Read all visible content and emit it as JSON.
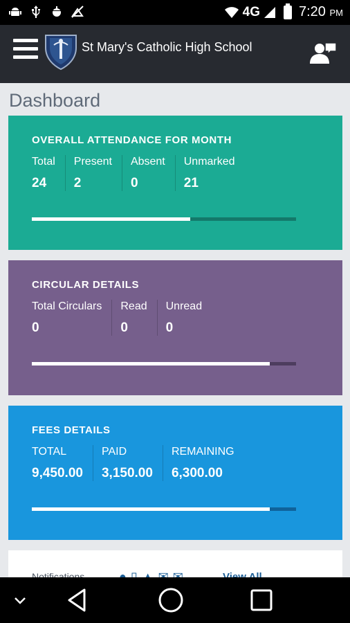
{
  "status_bar": {
    "network": "4G",
    "time": "7:20",
    "ampm": "PM",
    "left_icons": [
      "android-icon",
      "usb-icon",
      "android-debug-icon",
      "no-hanger-icon"
    ]
  },
  "app_bar": {
    "title": "St Mary's Catholic High School"
  },
  "page": {
    "title": "Dashboard"
  },
  "attendance": {
    "title": "OVERALL ATTENDANCE FOR  MONTH",
    "stats": [
      {
        "label": "Total",
        "value": "24"
      },
      {
        "label": "Present",
        "value": "2"
      },
      {
        "label": "Absent",
        "value": "0"
      },
      {
        "label": "Unmarked",
        "value": "21"
      }
    ],
    "progress": 0.6,
    "color": "#1bab94"
  },
  "circulars": {
    "title": "CIRCULAR DETAILS",
    "stats": [
      {
        "label": "Total Circulars",
        "value": "0"
      },
      {
        "label": "Read",
        "value": "0"
      },
      {
        "label": "Unread",
        "value": "0"
      }
    ],
    "progress": 0.9,
    "color": "#765f8c"
  },
  "fees": {
    "title": "FEES  DETAILS",
    "stats": [
      {
        "label": "TOTAL",
        "value": "9,450.00"
      },
      {
        "label": "PAID",
        "value": "3,150.00"
      },
      {
        "label": "REMAINING",
        "value": "6,300.00"
      }
    ],
    "progress": 0.9,
    "color": "#1996dd"
  },
  "notifications": {
    "label": "Notifications",
    "view_all": "View All"
  }
}
